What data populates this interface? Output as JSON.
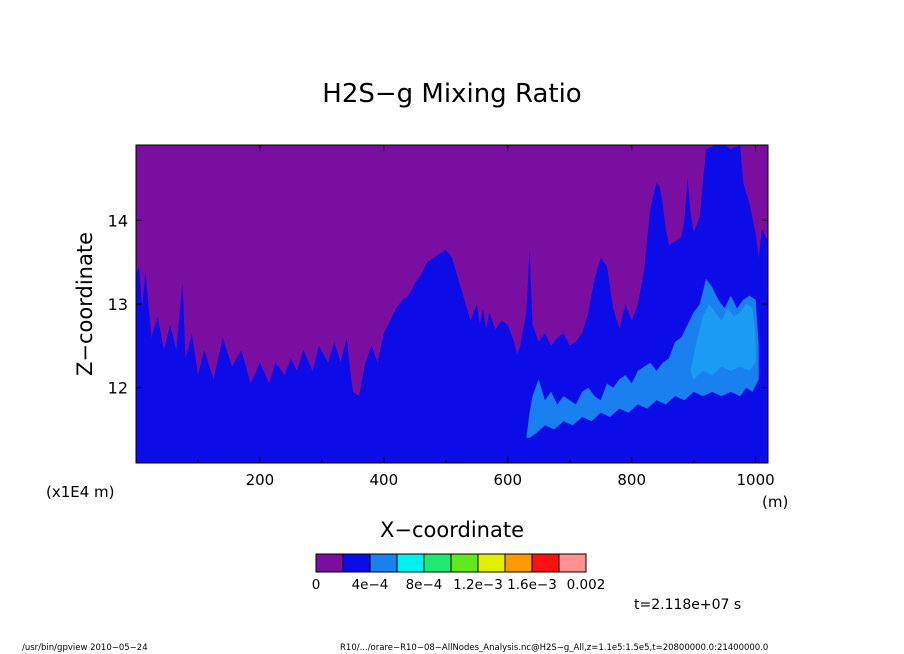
{
  "chart_data": {
    "type": "heatmap",
    "title": "H2S−g Mixing Ratio",
    "xlabel": "X−coordinate",
    "ylabel": "Z−coordinate",
    "x_unit": "(m)",
    "y_multiplier": "(x1E4 m)",
    "xlim": [
      0,
      1020
    ],
    "ylim": [
      11.1,
      14.9
    ],
    "x_ticks": [
      200,
      400,
      600,
      800,
      1000
    ],
    "y_ticks": [
      12,
      13,
      14
    ],
    "x_tick_labels": [
      "200",
      "400",
      "600",
      "800",
      "1000"
    ],
    "y_tick_labels": [
      "12",
      "13",
      "14"
    ],
    "color_levels": [
      {
        "color": "#7a0ea0"
      },
      {
        "color": "#0c0ce8"
      },
      {
        "color": "#1a80f0"
      },
      {
        "color": "#00f0f0"
      },
      {
        "color": "#20e870"
      },
      {
        "color": "#60e820"
      },
      {
        "color": "#e0f000"
      },
      {
        "color": "#ff9900"
      },
      {
        "color": "#ff1010"
      },
      {
        "color": "#ff9090"
      }
    ],
    "colorbar_labels": [
      "0",
      "4e−4",
      "8e−4",
      "1.2e−3",
      "1.6e−3",
      "0.002"
    ],
    "boundary_level1": [
      [
        0,
        13.35
      ],
      [
        5,
        13.45
      ],
      [
        10,
        12.95
      ],
      [
        15,
        13.4
      ],
      [
        25,
        12.6
      ],
      [
        35,
        12.85
      ],
      [
        45,
        12.45
      ],
      [
        55,
        12.75
      ],
      [
        65,
        12.45
      ],
      [
        75,
        13.25
      ],
      [
        80,
        12.35
      ],
      [
        90,
        12.65
      ],
      [
        100,
        12.15
      ],
      [
        110,
        12.45
      ],
      [
        125,
        12.1
      ],
      [
        140,
        12.6
      ],
      [
        155,
        12.25
      ],
      [
        170,
        12.45
      ],
      [
        185,
        12.05
      ],
      [
        200,
        12.3
      ],
      [
        215,
        12.05
      ],
      [
        225,
        12.3
      ],
      [
        240,
        12.15
      ],
      [
        250,
        12.35
      ],
      [
        260,
        12.2
      ],
      [
        270,
        12.45
      ],
      [
        285,
        12.2
      ],
      [
        295,
        12.5
      ],
      [
        310,
        12.3
      ],
      [
        320,
        12.55
      ],
      [
        330,
        12.3
      ],
      [
        340,
        12.6
      ],
      [
        345,
        12.25
      ],
      [
        350,
        11.95
      ],
      [
        360,
        11.9
      ],
      [
        370,
        12.3
      ],
      [
        380,
        12.5
      ],
      [
        390,
        12.3
      ],
      [
        400,
        12.65
      ],
      [
        410,
        12.8
      ],
      [
        420,
        12.95
      ],
      [
        430,
        13.05
      ],
      [
        440,
        13.1
      ],
      [
        450,
        13.25
      ],
      [
        460,
        13.35
      ],
      [
        470,
        13.5
      ],
      [
        480,
        13.55
      ],
      [
        490,
        13.6
      ],
      [
        500,
        13.65
      ],
      [
        510,
        13.55
      ],
      [
        520,
        13.3
      ],
      [
        530,
        13.05
      ],
      [
        540,
        12.8
      ],
      [
        550,
        13.0
      ],
      [
        555,
        12.75
      ],
      [
        560,
        12.95
      ],
      [
        565,
        12.7
      ],
      [
        570,
        12.9
      ],
      [
        580,
        12.7
      ],
      [
        590,
        12.8
      ],
      [
        600,
        12.75
      ],
      [
        610,
        12.55
      ],
      [
        615,
        12.4
      ],
      [
        620,
        12.5
      ],
      [
        630,
        12.9
      ],
      [
        635,
        13.65
      ],
      [
        640,
        12.75
      ],
      [
        650,
        12.55
      ],
      [
        660,
        12.65
      ],
      [
        670,
        12.5
      ],
      [
        680,
        12.6
      ],
      [
        690,
        12.65
      ],
      [
        700,
        12.5
      ],
      [
        710,
        12.55
      ],
      [
        720,
        12.65
      ],
      [
        730,
        12.9
      ],
      [
        740,
        13.3
      ],
      [
        750,
        13.55
      ],
      [
        760,
        13.45
      ],
      [
        770,
        12.95
      ],
      [
        780,
        12.7
      ],
      [
        790,
        13.0
      ],
      [
        800,
        12.8
      ],
      [
        810,
        13.0
      ],
      [
        820,
        13.4
      ],
      [
        830,
        14.15
      ],
      [
        840,
        14.45
      ],
      [
        845,
        14.4
      ],
      [
        850,
        14.2
      ],
      [
        855,
        13.9
      ],
      [
        860,
        13.7
      ],
      [
        870,
        13.75
      ],
      [
        880,
        13.8
      ],
      [
        885,
        14.0
      ],
      [
        890,
        14.5
      ],
      [
        895,
        14.1
      ],
      [
        900,
        13.85
      ],
      [
        910,
        14.05
      ],
      [
        920,
        14.85
      ],
      [
        935,
        14.9
      ],
      [
        950,
        14.9
      ],
      [
        960,
        14.85
      ],
      [
        975,
        14.9
      ],
      [
        980,
        14.45
      ],
      [
        990,
        14.2
      ],
      [
        1000,
        13.85
      ],
      [
        1005,
        13.55
      ],
      [
        1010,
        13.9
      ],
      [
        1020,
        13.75
      ]
    ],
    "region_level2_upper": [
      [
        630,
        11.4
      ],
      [
        635,
        11.7
      ],
      [
        640,
        11.9
      ],
      [
        650,
        12.1
      ],
      [
        660,
        11.85
      ],
      [
        670,
        11.95
      ],
      [
        680,
        11.8
      ],
      [
        690,
        11.9
      ],
      [
        700,
        11.85
      ],
      [
        710,
        11.8
      ],
      [
        720,
        11.95
      ],
      [
        730,
        12.0
      ],
      [
        740,
        11.9
      ],
      [
        750,
        11.85
      ],
      [
        760,
        12.05
      ],
      [
        770,
        12.0
      ],
      [
        780,
        12.1
      ],
      [
        790,
        12.15
      ],
      [
        800,
        12.05
      ],
      [
        810,
        12.2
      ],
      [
        820,
        12.25
      ],
      [
        830,
        12.3
      ],
      [
        840,
        12.2
      ],
      [
        850,
        12.3
      ],
      [
        860,
        12.35
      ],
      [
        870,
        12.55
      ],
      [
        880,
        12.6
      ],
      [
        890,
        12.75
      ],
      [
        900,
        12.9
      ],
      [
        910,
        13.0
      ],
      [
        920,
        13.3
      ],
      [
        930,
        13.2
      ],
      [
        940,
        13.05
      ],
      [
        950,
        12.95
      ],
      [
        960,
        13.1
      ],
      [
        970,
        12.95
      ],
      [
        980,
        13.05
      ],
      [
        990,
        13.1
      ],
      [
        1000,
        13.05
      ],
      [
        1005,
        12.5
      ]
    ],
    "region_level2_lower": [
      [
        1005,
        12.1
      ],
      [
        995,
        11.95
      ],
      [
        985,
        12.0
      ],
      [
        975,
        11.9
      ],
      [
        960,
        11.95
      ],
      [
        945,
        11.9
      ],
      [
        930,
        11.95
      ],
      [
        915,
        11.9
      ],
      [
        900,
        11.95
      ],
      [
        885,
        11.85
      ],
      [
        870,
        11.9
      ],
      [
        855,
        11.8
      ],
      [
        840,
        11.85
      ],
      [
        825,
        11.75
      ],
      [
        810,
        11.8
      ],
      [
        795,
        11.7
      ],
      [
        780,
        11.75
      ],
      [
        765,
        11.65
      ],
      [
        750,
        11.7
      ],
      [
        735,
        11.6
      ],
      [
        720,
        11.65
      ],
      [
        705,
        11.55
      ],
      [
        690,
        11.6
      ],
      [
        675,
        11.5
      ],
      [
        660,
        11.55
      ],
      [
        645,
        11.45
      ],
      [
        635,
        11.4
      ]
    ],
    "region_level3_upper": [
      [
        895,
        12.2
      ],
      [
        905,
        12.55
      ],
      [
        915,
        12.85
      ],
      [
        925,
        13.0
      ],
      [
        935,
        12.9
      ],
      [
        945,
        12.8
      ],
      [
        955,
        12.95
      ],
      [
        965,
        12.85
      ],
      [
        975,
        12.9
      ],
      [
        985,
        13.0
      ],
      [
        995,
        12.95
      ],
      [
        1000,
        12.6
      ]
    ],
    "region_level3_lower": [
      [
        1000,
        12.3
      ],
      [
        990,
        12.2
      ],
      [
        975,
        12.25
      ],
      [
        960,
        12.2
      ],
      [
        945,
        12.25
      ],
      [
        930,
        12.15
      ],
      [
        915,
        12.2
      ],
      [
        900,
        12.1
      ]
    ]
  },
  "time_label": "t=2.118e+07 s",
  "footer": {
    "left": "/usr/bin/gpview   2010−05−24",
    "right": "R10/.../orare−R10−08−AllNodes_Analysis.nc@H2S−g_All,z=1.1e5:1.5e5,t=20800000.0:21400000.0"
  }
}
